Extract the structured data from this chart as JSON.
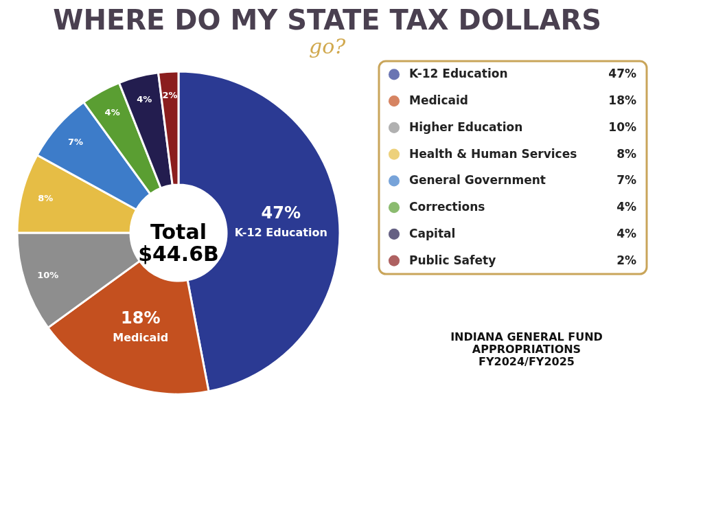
{
  "chart_data": {
    "type": "donut",
    "title": "WHERE DO MY STATE TAX DOLLARS",
    "subtitle": "go?",
    "categories": [
      "K-12 Education",
      "Medicaid",
      "Higher Education",
      "Health & Human Services",
      "General Government",
      "Corrections",
      "Capital",
      "Public Safety"
    ],
    "values": [
      47,
      18,
      10,
      8,
      7,
      4,
      4,
      2
    ],
    "colors": [
      "#2b3a93",
      "#c4501f",
      "#8e8e8e",
      "#e6bd45",
      "#3d7cc9",
      "#5a9e32",
      "#231d4f",
      "#8b1e1e"
    ],
    "value_labels": [
      "47%",
      "18%",
      "10%",
      "8%",
      "7%",
      "4%",
      "4%",
      "2%"
    ],
    "legend": "right",
    "annotations": [
      "Total\n$44.6B",
      "INDIANA GENERAL FUND\nAPPROPRIATIONS\nFY2024/FY2025",
      {
        "text": "K-12 Education",
        "x": "K-12 Education"
      },
      {
        "text": "Medicaid",
        "x": "Medicaid"
      }
    ]
  }
}
